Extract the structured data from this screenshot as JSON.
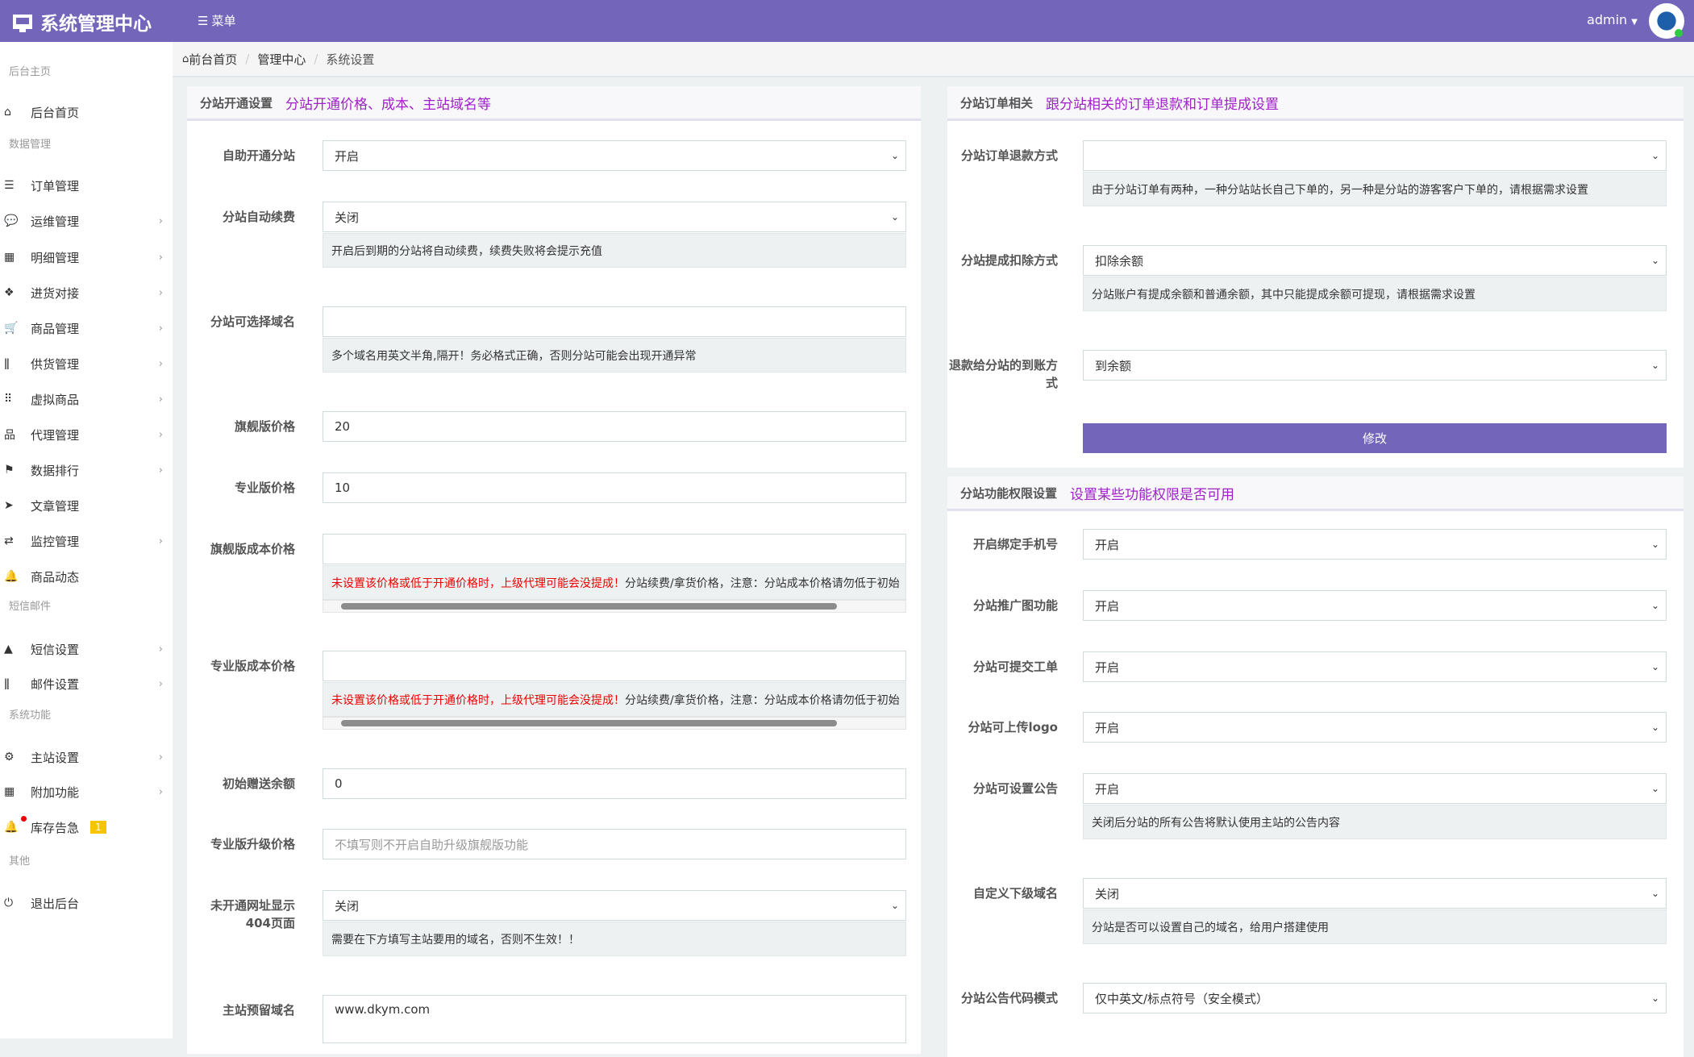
{
  "header": {
    "title": "系统管理中心",
    "menu_label": "菜单",
    "user": "admin",
    "brand_color": "#7366ba"
  },
  "breadcrumb": [
    "前台首页",
    "管理中心",
    "系统设置"
  ],
  "sidebar": [
    {
      "section": "后台主页"
    },
    {
      "label": "后台首页",
      "icon": "home-icon"
    },
    {
      "section": "数据管理"
    },
    {
      "label": "订单管理",
      "icon": "list-icon"
    },
    {
      "label": "运维管理",
      "icon": "comments-icon",
      "chevron": true
    },
    {
      "label": "明细管理",
      "icon": "calendar-icon",
      "chevron": true
    },
    {
      "label": "进货对接",
      "icon": "cubes-icon",
      "chevron": true
    },
    {
      "label": "商品管理",
      "icon": "cart-icon",
      "chevron": true
    },
    {
      "label": "供货管理",
      "icon": "cutlery-icon",
      "chevron": true
    },
    {
      "label": "虚拟商品",
      "icon": "grid-icon",
      "chevron": true
    },
    {
      "label": "代理管理",
      "icon": "sitemap-icon",
      "chevron": true
    },
    {
      "label": "数据排行",
      "icon": "flag-icon",
      "chevron": true
    },
    {
      "label": "文章管理",
      "icon": "paper-plane-icon"
    },
    {
      "label": "监控管理",
      "icon": "retweet-icon",
      "chevron": true
    },
    {
      "label": "商品动态",
      "icon": "bell-icon"
    },
    {
      "section": "短信邮件"
    },
    {
      "label": "短信设置",
      "icon": "area-chart-icon",
      "chevron": true
    },
    {
      "label": "邮件设置",
      "icon": "cutlery-icon",
      "chevron": true
    },
    {
      "section": "系统功能"
    },
    {
      "label": "主站设置",
      "icon": "gear-icon",
      "chevron": true
    },
    {
      "label": "附加功能",
      "icon": "calendar-icon",
      "chevron": true
    },
    {
      "label": "库存告急",
      "icon": "bell-icon",
      "badge": "1",
      "alert_dot": true
    },
    {
      "section": "其他"
    },
    {
      "label": "退出后台",
      "icon": "power-icon"
    }
  ],
  "left_panel": {
    "title": "分站开通设置",
    "subtitle": "分站开通价格、成本、主站域名等",
    "fields": [
      {
        "label": "自助开通分站",
        "type": "select",
        "value": "开启"
      },
      {
        "label": "分站自动续费",
        "type": "select",
        "value": "关闭",
        "help": "开启后到期的分站将自动续费，续费失败将会提示充值"
      },
      {
        "label": "分站可选择域名",
        "type": "input",
        "value": "",
        "help": "多个域名用英文半角,隔开！务必格式正确，否则分站可能会出现开通异常"
      },
      {
        "label": "旗舰版价格",
        "type": "input",
        "value": "20"
      },
      {
        "label": "专业版价格",
        "type": "input",
        "value": "10"
      },
      {
        "label": "旗舰版成本价格",
        "type": "input",
        "value": "",
        "help_red": "未设置该价格或低于开通价格时，上级代理可能会没提成！",
        "help": "分站续费/拿货价格，注意：分站成本价格请勿低于初始",
        "scroll": true
      },
      {
        "label": "专业版成本价格",
        "type": "input",
        "value": "",
        "help_red": "未设置该价格或低于开通价格时，上级代理可能会没提成！",
        "help": "分站续费/拿货价格，注意：分站成本价格请勿低于初始",
        "scroll": true
      },
      {
        "label": "初始赠送余额",
        "type": "input",
        "value": "0"
      },
      {
        "label": "专业版升级价格",
        "type": "input",
        "value": "",
        "placeholder": "不填写则不开启自助升级旗舰版功能"
      },
      {
        "label": "未开通网址显示404页面",
        "type": "select",
        "value": "关闭",
        "help": "需要在下方填写主站要用的域名，否则不生效！！"
      },
      {
        "label": "主站预留域名",
        "type": "input",
        "value": "www.dkym.com"
      }
    ]
  },
  "right_panel_1": {
    "title": "分站订单相关",
    "subtitle": "跟分站相关的订单退款和订单提成设置",
    "fields": [
      {
        "label": "分站订单退款方式",
        "type": "select",
        "value": "",
        "help": "由于分站订单有两种，一种分站站长自己下单的，另一种是分站的游客客户下单的，请根据需求设置"
      },
      {
        "label": "分站提成扣除方式",
        "type": "select",
        "value": "扣除余额",
        "help": "分站账户有提成余额和普通余额，其中只能提成余额可提现，请根据需求设置"
      },
      {
        "label": "退款给分站的到账方式",
        "type": "select",
        "value": "到余额"
      }
    ],
    "button": "修改"
  },
  "right_panel_2": {
    "title": "分站功能权限设置",
    "subtitle": "设置某些功能权限是否可用",
    "fields": [
      {
        "label": "开启绑定手机号",
        "type": "select",
        "value": "开启"
      },
      {
        "label": "分站推广图功能",
        "type": "select",
        "value": "开启"
      },
      {
        "label": "分站可提交工单",
        "type": "select",
        "value": "开启"
      },
      {
        "label": "分站可上传logo",
        "type": "select",
        "value": "开启"
      },
      {
        "label": "分站可设置公告",
        "type": "select",
        "value": "开启",
        "help": "关闭后分站的所有公告将默认使用主站的公告内容"
      },
      {
        "label": "自定义下级域名",
        "type": "select",
        "value": "关闭",
        "help": "分站是否可以设置自己的域名，给用户搭建使用"
      },
      {
        "label": "分站公告代码模式",
        "type": "select",
        "value": "仅中英文/标点符号（安全模式）"
      }
    ]
  }
}
